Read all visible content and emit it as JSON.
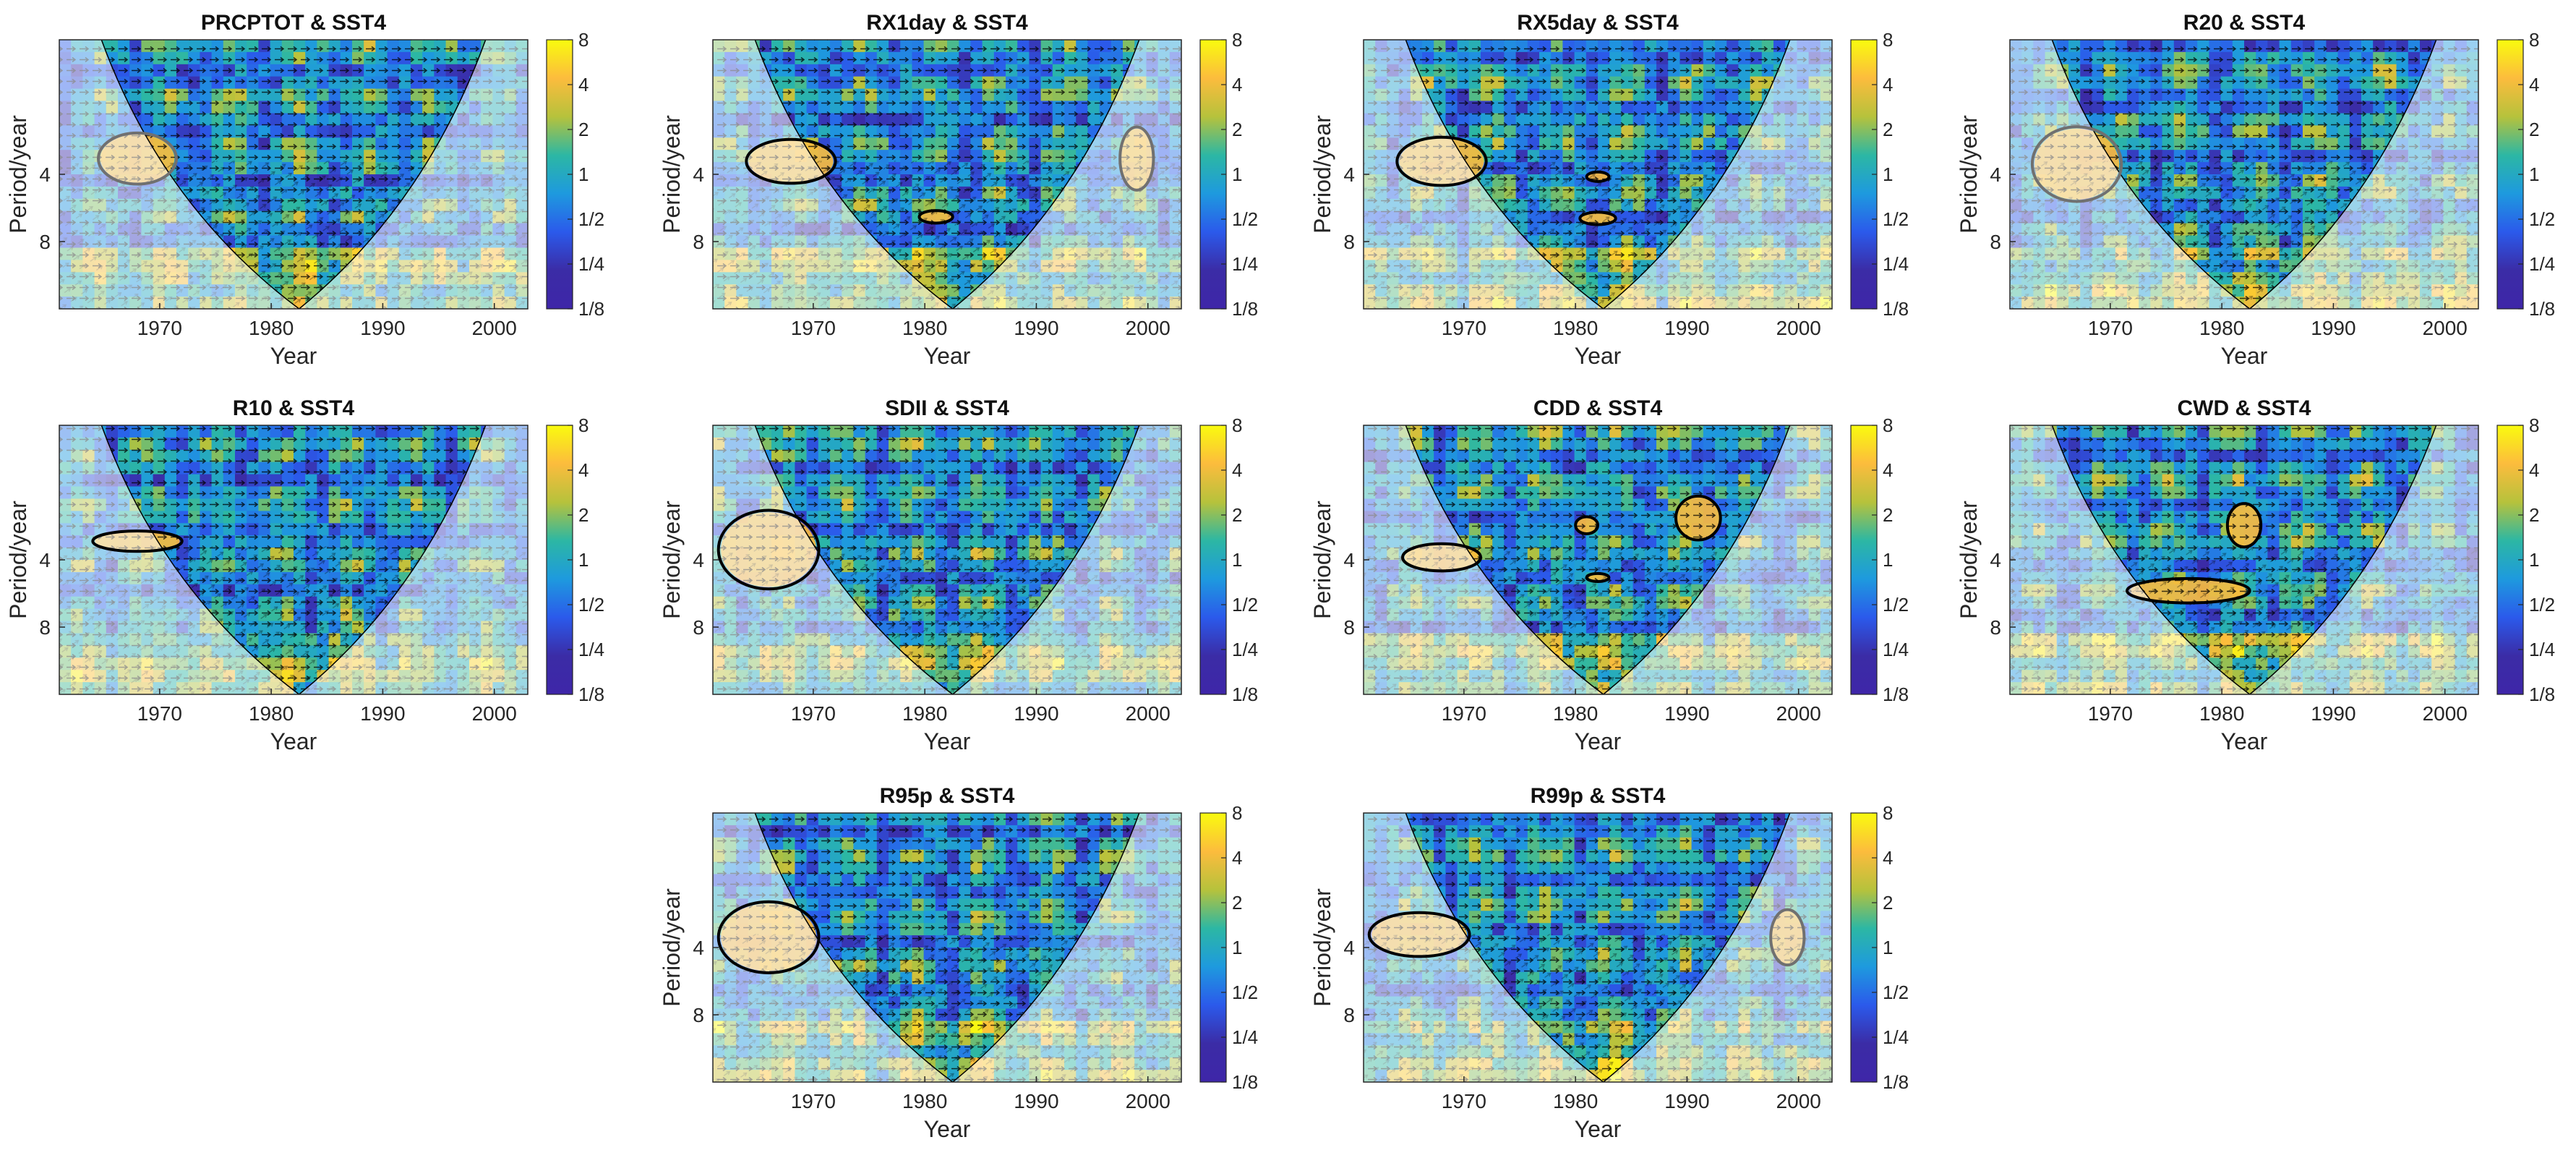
{
  "figure": {
    "type": "wavelet-coherence-grid",
    "colorbar": {
      "tick_labels": [
        "8",
        "4",
        "2",
        "1",
        "1/2",
        "1/4",
        "1/8"
      ],
      "colors": [
        "#f9fb0e",
        "#fcbc3d",
        "#b6c23c",
        "#2cb7a4",
        "#1e9ade",
        "#2b5aeb",
        "#3b2ca6",
        "#3e26a8"
      ]
    },
    "style": {
      "arrow_color": "#000000",
      "contour_color": "#000000",
      "coi_mask_color": "#ffffff"
    }
  },
  "chart_data": [
    {
      "type": "heatmap",
      "title": "PRCPTOT & SST4",
      "xlabel": "Year",
      "ylabel": "Period/year",
      "x_ticks": [
        "1970",
        "1980",
        "1990",
        "2000"
      ],
      "y_ticks": [
        "4",
        "8"
      ],
      "xlim": [
        1961,
        2003
      ],
      "ylim_period": [
        1,
        16
      ],
      "significant_regions": [
        {
          "center_year": 1968,
          "center_period": 3.4,
          "year_halfwidth": 3.5,
          "period_span": [
            2.6,
            4.4
          ],
          "inside_coi": false
        }
      ]
    },
    {
      "type": "heatmap",
      "title": "RX1day & SST4",
      "xlabel": "Year",
      "ylabel": "Period/year",
      "x_ticks": [
        "1970",
        "1980",
        "1990",
        "2000"
      ],
      "y_ticks": [
        "4",
        "8"
      ],
      "xlim": [
        1961,
        2003
      ],
      "ylim_period": [
        1,
        16
      ],
      "significant_regions": [
        {
          "center_year": 1968,
          "center_period": 3.5,
          "year_halfwidth": 4.0,
          "period_span": [
            2.8,
            4.4
          ],
          "inside_coi": true
        },
        {
          "center_year": 1981,
          "center_period": 6.2,
          "year_halfwidth": 1.5,
          "period_span": [
            5.8,
            6.6
          ],
          "inside_coi": true
        },
        {
          "center_year": 1999,
          "center_period": 3.4,
          "year_halfwidth": 1.5,
          "period_span": [
            2.4,
            4.6
          ],
          "inside_coi": false
        }
      ]
    },
    {
      "type": "heatmap",
      "title": "RX5day & SST4",
      "xlabel": "Year",
      "ylabel": "Period/year",
      "x_ticks": [
        "1970",
        "1980",
        "1990",
        "2000"
      ],
      "y_ticks": [
        "4",
        "8"
      ],
      "xlim": [
        1961,
        2003
      ],
      "ylim_period": [
        1,
        16
      ],
      "significant_regions": [
        {
          "center_year": 1968,
          "center_period": 3.5,
          "year_halfwidth": 4.0,
          "period_span": [
            2.8,
            4.6
          ],
          "inside_coi": true
        },
        {
          "center_year": 1982,
          "center_period": 4.1,
          "year_halfwidth": 1.0,
          "period_span": [
            3.9,
            4.3
          ],
          "inside_coi": true
        },
        {
          "center_year": 1982,
          "center_period": 6.3,
          "year_halfwidth": 1.6,
          "period_span": [
            5.9,
            6.7
          ],
          "inside_coi": true
        }
      ]
    },
    {
      "type": "heatmap",
      "title": "R20 & SST4",
      "xlabel": "Year",
      "ylabel": "Period/year",
      "x_ticks": [
        "1970",
        "1980",
        "1990",
        "2000"
      ],
      "y_ticks": [
        "4",
        "8"
      ],
      "xlim": [
        1961,
        2003
      ],
      "ylim_period": [
        1,
        16
      ],
      "significant_regions": [
        {
          "center_year": 1967,
          "center_period": 3.6,
          "year_halfwidth": 4.0,
          "period_span": [
            2.5,
            5.4
          ],
          "inside_coi": false
        }
      ]
    },
    {
      "type": "heatmap",
      "title": "R10 & SST4",
      "xlabel": "Year",
      "ylabel": "Period/year",
      "x_ticks": [
        "1970",
        "1980",
        "1990",
        "2000"
      ],
      "y_ticks": [
        "4",
        "8"
      ],
      "xlim": [
        1961,
        2003
      ],
      "ylim_period": [
        1,
        16
      ],
      "significant_regions": [
        {
          "center_year": 1968,
          "center_period": 3.3,
          "year_halfwidth": 4.0,
          "period_span": [
            3.0,
            3.7
          ],
          "inside_coi": true
        }
      ]
    },
    {
      "type": "heatmap",
      "title": "SDII & SST4",
      "xlabel": "Year",
      "ylabel": "Period/year",
      "x_ticks": [
        "1970",
        "1980",
        "1990",
        "2000"
      ],
      "y_ticks": [
        "4",
        "8"
      ],
      "xlim": [
        1961,
        2003
      ],
      "ylim_period": [
        1,
        16
      ],
      "significant_regions": [
        {
          "center_year": 1966,
          "center_period": 3.6,
          "year_halfwidth": 4.5,
          "period_span": [
            2.4,
            5.4
          ],
          "inside_coi": true
        }
      ]
    },
    {
      "type": "heatmap",
      "title": "CDD & SST4",
      "xlabel": "Year",
      "ylabel": "Period/year",
      "x_ticks": [
        "1970",
        "1980",
        "1990",
        "2000"
      ],
      "y_ticks": [
        "4",
        "8"
      ],
      "xlim": [
        1961,
        2003
      ],
      "ylim_period": [
        1,
        16
      ],
      "significant_regions": [
        {
          "center_year": 1968,
          "center_period": 3.9,
          "year_halfwidth": 3.5,
          "period_span": [
            3.4,
            4.5
          ],
          "inside_coi": true
        },
        {
          "center_year": 1981,
          "center_period": 2.8,
          "year_halfwidth": 1.0,
          "period_span": [
            2.6,
            3.1
          ],
          "inside_coi": true
        },
        {
          "center_year": 1982,
          "center_period": 4.8,
          "year_halfwidth": 1.0,
          "period_span": [
            4.6,
            5.0
          ],
          "inside_coi": true
        },
        {
          "center_year": 1991,
          "center_period": 2.6,
          "year_halfwidth": 2.0,
          "period_span": [
            2.1,
            3.3
          ],
          "inside_coi": true
        }
      ]
    },
    {
      "type": "heatmap",
      "title": "CWD & SST4",
      "xlabel": "Year",
      "ylabel": "Period/year",
      "x_ticks": [
        "1970",
        "1980",
        "1990",
        "2000"
      ],
      "y_ticks": [
        "4",
        "8"
      ],
      "xlim": [
        1961,
        2003
      ],
      "ylim_period": [
        1,
        16
      ],
      "significant_regions": [
        {
          "center_year": 1977,
          "center_period": 5.5,
          "year_halfwidth": 5.5,
          "period_span": [
            4.9,
            6.3
          ],
          "inside_coi": true
        },
        {
          "center_year": 1982,
          "center_period": 2.8,
          "year_halfwidth": 1.5,
          "period_span": [
            2.3,
            3.6
          ],
          "inside_coi": true
        }
      ]
    },
    {
      "type": "heatmap",
      "title": "R95p & SST4",
      "xlabel": "Year",
      "ylabel": "Period/year",
      "x_ticks": [
        "1970",
        "1980",
        "1990",
        "2000"
      ],
      "y_ticks": [
        "4",
        "8"
      ],
      "xlim": [
        1961,
        2003
      ],
      "ylim_period": [
        1,
        16
      ],
      "significant_regions": [
        {
          "center_year": 1966,
          "center_period": 3.6,
          "year_halfwidth": 4.5,
          "period_span": [
            2.5,
            5.2
          ],
          "inside_coi": true
        }
      ]
    },
    {
      "type": "heatmap",
      "title": "R99p & SST4",
      "xlabel": "Year",
      "ylabel": "Period/year",
      "x_ticks": [
        "1970",
        "1980",
        "1990",
        "2000"
      ],
      "y_ticks": [
        "4",
        "8"
      ],
      "xlim": [
        1961,
        2003
      ],
      "ylim_period": [
        1,
        16
      ],
      "significant_regions": [
        {
          "center_year": 1966,
          "center_period": 3.5,
          "year_halfwidth": 4.5,
          "period_span": [
            2.8,
            4.4
          ],
          "inside_coi": true
        },
        {
          "center_year": 1999,
          "center_period": 3.6,
          "year_halfwidth": 1.5,
          "period_span": [
            2.6,
            4.6
          ],
          "inside_coi": false
        }
      ]
    }
  ]
}
